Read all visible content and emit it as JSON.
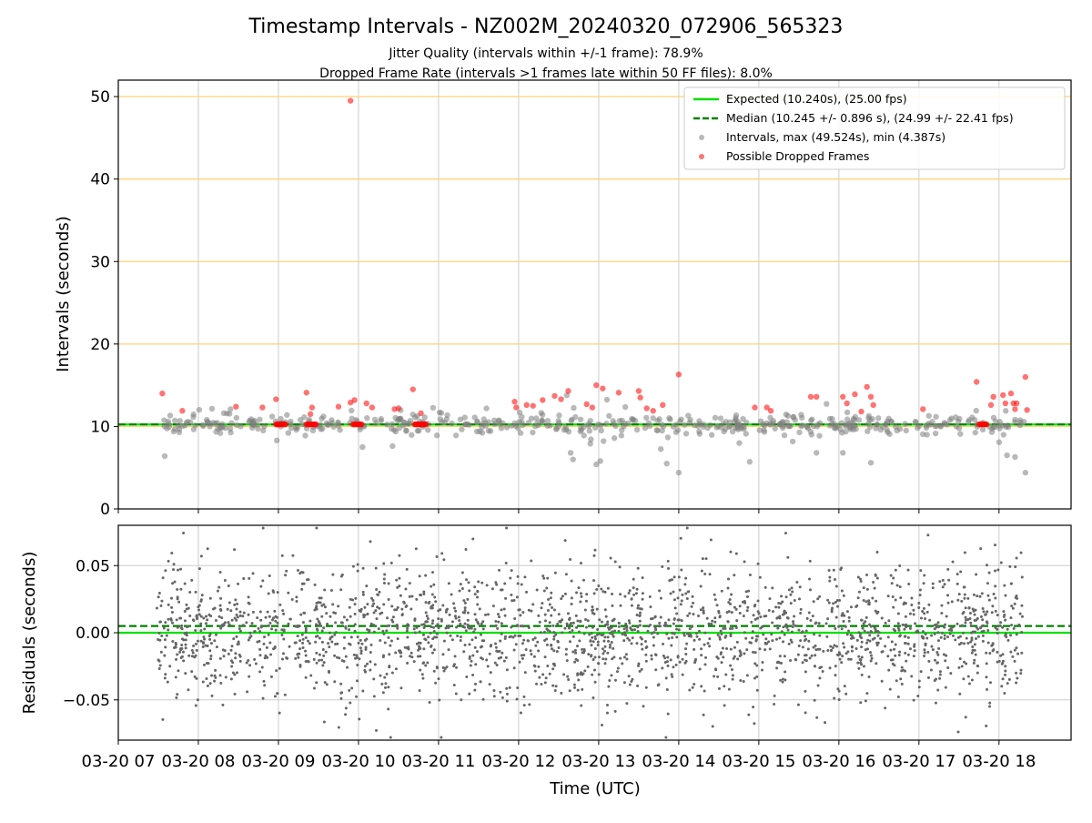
{
  "title": "Timestamp Intervals - NZ002M_20240320_072906_565323",
  "subtitle_1": "Jitter Quality (intervals within +/-1 frame): 78.9%",
  "subtitle_2": "Dropped Frame Rate (intervals >1 frames late within 50 FF files): 8.0%",
  "colors": {
    "expected": "#00e000",
    "median": "#008000",
    "intervals": "#808080",
    "dropped": "#ff0000",
    "hline": "#ffd27a",
    "grid": "#cccccc"
  },
  "chart_data": [
    {
      "type": "scatter",
      "ylabel": "Intervals (seconds)",
      "ylim": [
        0,
        52
      ],
      "xlim_hours": [
        7.0,
        18.9
      ],
      "yticks": [
        0,
        10,
        20,
        30,
        40,
        50
      ],
      "horizontal_lines": [
        10,
        20,
        30,
        40,
        50
      ],
      "grid": "vertical",
      "legend_position": "top-right",
      "legend": [
        {
          "label": "Expected (10.240s), (25.00 fps)",
          "style": "solid-line",
          "color": "#00e000"
        },
        {
          "label": "Median (10.245 +/- 0.896 s), (24.99 +/- 22.41 fps)",
          "style": "dashed-line",
          "color": "#008000"
        },
        {
          "label": "Intervals, max (49.524s), min (4.387s)",
          "style": "dot",
          "color": "#808080"
        },
        {
          "label": "Possible Dropped Frames",
          "style": "dot",
          "color": "#ff0000"
        }
      ],
      "expected": 10.24,
      "median": 10.245,
      "intervals_max": 49.524,
      "intervals_min": 4.387,
      "data_span_hours": [
        7.48,
        18.32
      ],
      "dropped_clusters_hours": [
        [
          8.97,
          9.1
        ],
        [
          9.35,
          9.48
        ],
        [
          9.93,
          10.05
        ],
        [
          10.7,
          10.85
        ],
        [
          17.75,
          17.85
        ]
      ],
      "dropped_points": [
        {
          "x": 7.55,
          "y": 14.0
        },
        {
          "x": 7.8,
          "y": 11.9
        },
        {
          "x": 8.47,
          "y": 12.4
        },
        {
          "x": 8.8,
          "y": 12.3
        },
        {
          "x": 8.97,
          "y": 13.3
        },
        {
          "x": 9.35,
          "y": 14.1
        },
        {
          "x": 9.42,
          "y": 12.3
        },
        {
          "x": 9.4,
          "y": 11.5
        },
        {
          "x": 9.75,
          "y": 12.4
        },
        {
          "x": 9.9,
          "y": 49.5
        },
        {
          "x": 9.9,
          "y": 12.9
        },
        {
          "x": 9.95,
          "y": 13.2
        },
        {
          "x": 10.1,
          "y": 12.8
        },
        {
          "x": 10.17,
          "y": 12.3
        },
        {
          "x": 10.45,
          "y": 12.1
        },
        {
          "x": 10.5,
          "y": 12.2
        },
        {
          "x": 10.68,
          "y": 14.5
        },
        {
          "x": 10.78,
          "y": 11.6
        },
        {
          "x": 11.95,
          "y": 13.0
        },
        {
          "x": 11.97,
          "y": 12.3
        },
        {
          "x": 12.1,
          "y": 12.6
        },
        {
          "x": 12.18,
          "y": 12.5
        },
        {
          "x": 12.3,
          "y": 13.2
        },
        {
          "x": 12.45,
          "y": 13.7
        },
        {
          "x": 12.53,
          "y": 13.3
        },
        {
          "x": 12.62,
          "y": 14.3
        },
        {
          "x": 12.85,
          "y": 12.7
        },
        {
          "x": 12.92,
          "y": 12.3
        },
        {
          "x": 12.97,
          "y": 15.0
        },
        {
          "x": 13.05,
          "y": 14.6
        },
        {
          "x": 13.25,
          "y": 14.1
        },
        {
          "x": 13.5,
          "y": 14.3
        },
        {
          "x": 13.52,
          "y": 13.5
        },
        {
          "x": 13.6,
          "y": 12.2
        },
        {
          "x": 13.68,
          "y": 11.9
        },
        {
          "x": 13.8,
          "y": 12.6
        },
        {
          "x": 14.0,
          "y": 16.3
        },
        {
          "x": 14.95,
          "y": 12.3
        },
        {
          "x": 15.1,
          "y": 12.3
        },
        {
          "x": 15.15,
          "y": 11.9
        },
        {
          "x": 15.65,
          "y": 13.6
        },
        {
          "x": 15.72,
          "y": 13.6
        },
        {
          "x": 16.05,
          "y": 13.6
        },
        {
          "x": 16.1,
          "y": 12.8
        },
        {
          "x": 16.2,
          "y": 13.9
        },
        {
          "x": 16.28,
          "y": 11.8
        },
        {
          "x": 16.35,
          "y": 14.8
        },
        {
          "x": 16.4,
          "y": 13.6
        },
        {
          "x": 16.43,
          "y": 12.6
        },
        {
          "x": 17.05,
          "y": 12.1
        },
        {
          "x": 17.72,
          "y": 15.4
        },
        {
          "x": 17.9,
          "y": 12.6
        },
        {
          "x": 17.93,
          "y": 13.6
        },
        {
          "x": 18.05,
          "y": 13.8
        },
        {
          "x": 18.08,
          "y": 12.8
        },
        {
          "x": 18.15,
          "y": 14.0
        },
        {
          "x": 18.18,
          "y": 12.8
        },
        {
          "x": 18.2,
          "y": 12.1
        },
        {
          "x": 18.22,
          "y": 12.8
        },
        {
          "x": 18.33,
          "y": 16.0
        },
        {
          "x": 18.35,
          "y": 12.0
        }
      ],
      "outlier_intervals": [
        {
          "x": 7.58,
          "y": 6.4
        },
        {
          "x": 8.98,
          "y": 8.3
        },
        {
          "x": 10.05,
          "y": 7.5
        },
        {
          "x": 12.65,
          "y": 6.8
        },
        {
          "x": 12.68,
          "y": 6.0
        },
        {
          "x": 12.97,
          "y": 5.4
        },
        {
          "x": 13.02,
          "y": 5.8
        },
        {
          "x": 13.85,
          "y": 5.5
        },
        {
          "x": 14.0,
          "y": 4.4
        },
        {
          "x": 15.72,
          "y": 6.8
        },
        {
          "x": 16.05,
          "y": 6.8
        },
        {
          "x": 16.4,
          "y": 5.6
        },
        {
          "x": 17.1,
          "y": 9.0
        },
        {
          "x": 18.1,
          "y": 6.5
        },
        {
          "x": 18.2,
          "y": 6.3
        },
        {
          "x": 18.33,
          "y": 4.4
        }
      ]
    },
    {
      "type": "scatter",
      "ylabel": "Residuals (seconds)",
      "xlabel": "Time (UTC)",
      "ylim": [
        -0.08,
        0.08
      ],
      "yticks": [
        0.05,
        0.0,
        -0.05
      ],
      "ytick_labels": [
        "0.05",
        "0.00",
        "−0.05"
      ],
      "grid": "both",
      "expected": 0.0,
      "median": 0.005,
      "residual_spread_std": 0.025,
      "residual_range": [
        -0.078,
        0.078
      ],
      "data_span_hours": [
        7.48,
        18.32
      ],
      "xticks_hours": [
        7,
        8,
        9,
        10,
        11,
        12,
        13,
        14,
        15,
        16,
        17,
        18
      ],
      "xtick_labels": [
        "03-20 07",
        "03-20 08",
        "03-20 09",
        "03-20 10",
        "03-20 11",
        "03-20 12",
        "03-20 13",
        "03-20 14",
        "03-20 15",
        "03-20 16",
        "03-20 17",
        "03-20 18"
      ]
    }
  ]
}
